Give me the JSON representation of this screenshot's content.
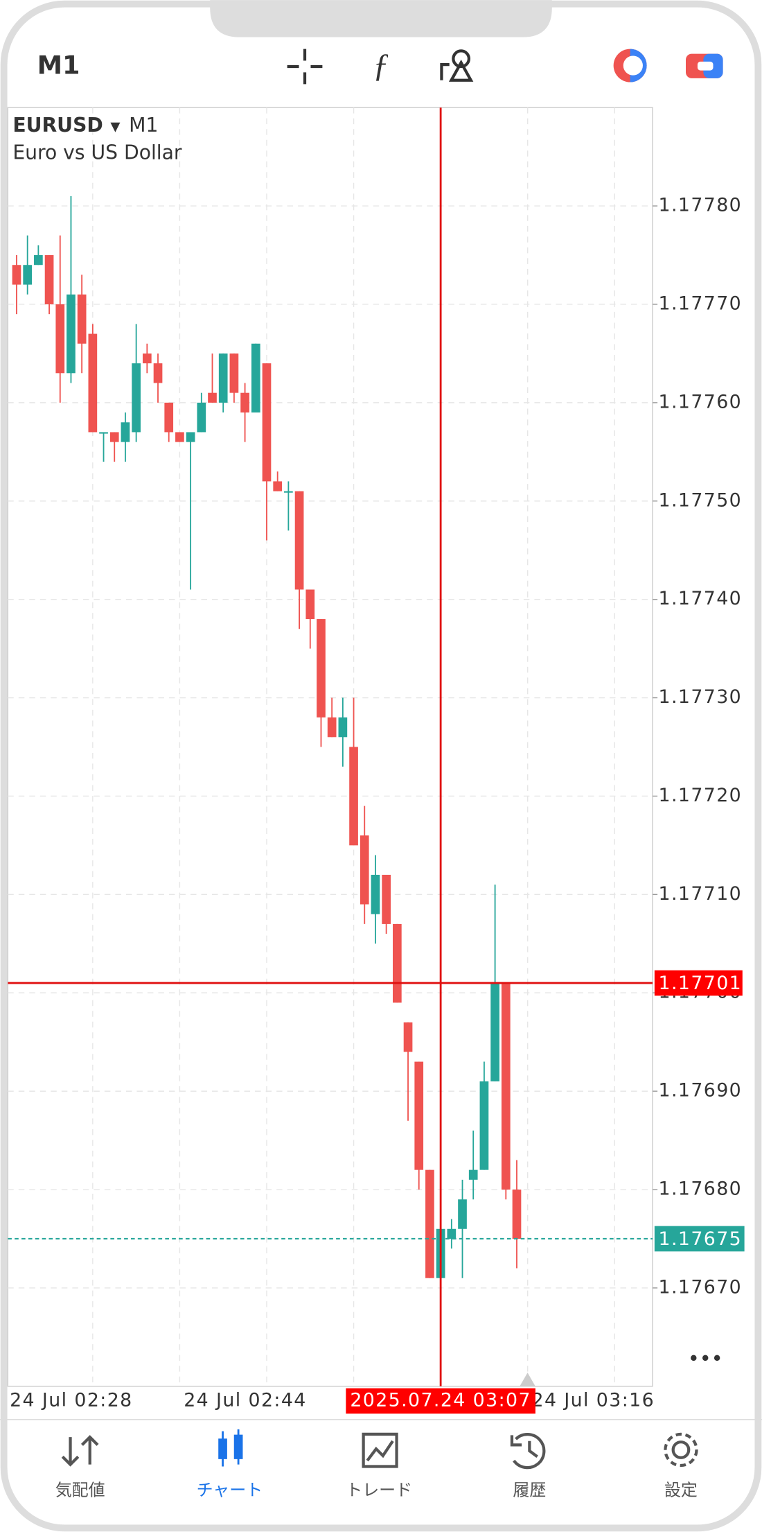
{
  "header": {
    "timeframe": "M1"
  },
  "chart_data": {
    "type": "candlestick",
    "symbol": "EURUSD",
    "timeframe": "M1",
    "description": "Euro vs US Dollar",
    "categories": [
      "24 Jul 02:28",
      null,
      null,
      null,
      null,
      null,
      null,
      null,
      null,
      null,
      null,
      null,
      null,
      null,
      null,
      null,
      "24 Jul 02:44",
      null,
      null,
      null,
      null,
      null,
      null,
      null,
      null,
      null,
      null,
      null,
      null,
      null,
      null,
      null,
      null,
      null,
      null,
      null,
      null,
      null,
      null,
      "2025.07.24 03:07",
      null,
      null,
      null,
      null,
      null,
      null,
      null,
      null,
      "24 Jul 03:16"
    ],
    "open": [
      1.17774,
      1.17772,
      1.17774,
      1.17775,
      1.1777,
      1.17763,
      1.17771,
      1.17767,
      1.17757,
      1.17757,
      1.17756,
      1.17757,
      1.17765,
      1.17764,
      1.1776,
      1.17757,
      1.17756,
      1.17757,
      1.17761,
      1.1776,
      1.17765,
      1.17761,
      1.17759,
      1.17764,
      1.17752,
      1.17751,
      1.17751,
      1.17741,
      1.17738,
      1.17728,
      1.17726,
      1.17725,
      1.17716,
      1.17708,
      1.17712,
      1.17707,
      1.17697,
      1.17693,
      1.17682,
      1.17671,
      1.17675,
      1.17676,
      1.17681,
      1.17682,
      1.17691,
      1.17701,
      1.1768,
      null,
      null
    ],
    "high": [
      1.17775,
      1.17777,
      1.17776,
      1.17775,
      1.17777,
      1.17781,
      1.17773,
      1.17768,
      1.17757,
      1.17757,
      1.17759,
      1.17768,
      1.17766,
      1.17765,
      1.1776,
      1.17757,
      1.17757,
      1.17761,
      1.17765,
      1.17765,
      1.17765,
      1.17762,
      1.17766,
      1.17764,
      1.17753,
      1.17752,
      1.17751,
      1.17741,
      1.17738,
      1.1773,
      1.1773,
      1.1773,
      1.17719,
      1.17714,
      1.17712,
      1.17707,
      1.17697,
      1.17693,
      1.17682,
      1.17677,
      1.17677,
      1.17681,
      1.17686,
      1.17693,
      1.17711,
      1.17701,
      1.17683,
      null,
      null
    ],
    "low": [
      1.17769,
      1.17771,
      1.17774,
      1.17769,
      1.1776,
      1.17762,
      1.17763,
      1.17757,
      1.17754,
      1.17754,
      1.17754,
      1.17756,
      1.17763,
      1.1776,
      1.17756,
      1.17756,
      1.17741,
      1.17757,
      1.1776,
      1.17759,
      1.1776,
      1.17756,
      1.17759,
      1.17746,
      1.17751,
      1.17747,
      1.17737,
      1.17735,
      1.17725,
      1.17726,
      1.17723,
      1.17715,
      1.17707,
      1.17705,
      1.17706,
      1.17699,
      1.17687,
      1.1768,
      1.17671,
      1.17667,
      1.17674,
      1.17671,
      1.17679,
      1.17682,
      1.17691,
      1.17679,
      1.17672,
      null,
      null
    ],
    "close": [
      1.17772,
      1.17774,
      1.17775,
      1.1777,
      1.17763,
      1.17771,
      1.17766,
      1.17757,
      1.17757,
      1.17756,
      1.17758,
      1.17764,
      1.17764,
      1.17762,
      1.17757,
      1.17756,
      1.17757,
      1.1776,
      1.1776,
      1.17765,
      1.17761,
      1.17759,
      1.17766,
      1.17752,
      1.17751,
      1.17751,
      1.17741,
      1.17738,
      1.17728,
      1.17726,
      1.17728,
      1.17715,
      1.17709,
      1.17712,
      1.17707,
      1.17699,
      1.17694,
      1.17682,
      1.17671,
      1.17676,
      1.17676,
      1.17679,
      1.17682,
      1.17691,
      1.17701,
      1.1768,
      1.17675,
      null,
      null
    ],
    "up_color": "#26a69a",
    "down_color": "#ef5350",
    "ylim": [
      1.1766,
      1.1779
    ],
    "yticks": [
      {
        "value": 1.1767,
        "label": "1.17670"
      },
      {
        "value": 1.1768,
        "label": "1.17680"
      },
      {
        "value": 1.1769,
        "label": "1.17690"
      },
      {
        "value": 1.177,
        "label": "1.17700"
      },
      {
        "value": 1.1771,
        "label": "1.17710"
      },
      {
        "value": 1.1772,
        "label": "1.17720"
      },
      {
        "value": 1.1773,
        "label": "1.17730"
      },
      {
        "value": 1.1774,
        "label": "1.17740"
      },
      {
        "value": 1.1775,
        "label": "1.17750"
      },
      {
        "value": 1.1776,
        "label": "1.17760"
      },
      {
        "value": 1.1777,
        "label": "1.17770"
      },
      {
        "value": 1.1778,
        "label": "1.17780"
      }
    ],
    "grid": true,
    "current_price": 1.17675,
    "crosshair": {
      "x": "2025.07.24 03:07",
      "price": 1.17701
    }
  },
  "nav": {
    "items": [
      "気配値",
      "チャート",
      "トレード",
      "履歴",
      "設定"
    ],
    "active": 1
  }
}
